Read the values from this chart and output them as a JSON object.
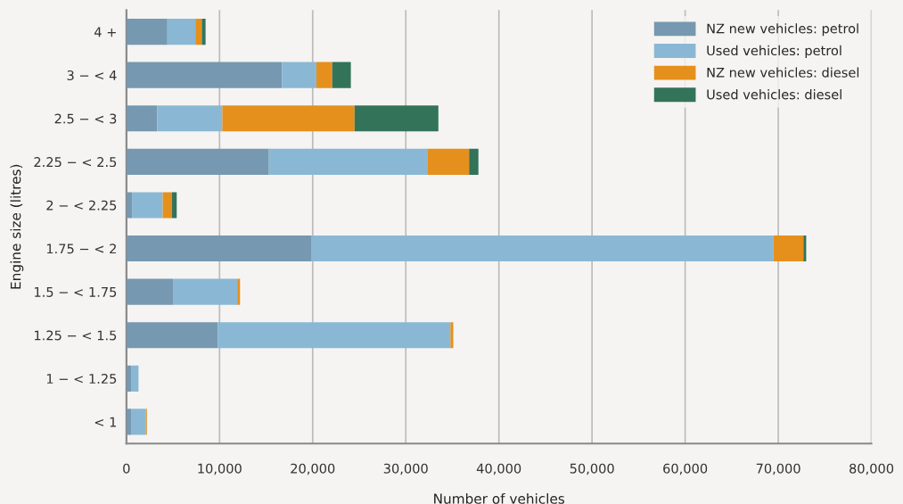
{
  "chart_data": {
    "type": "bar",
    "orientation": "horizontal",
    "stacked": true,
    "xlabel": "Number of vehicles",
    "ylabel": "Engine size (litres)",
    "categories": [
      "4 +",
      "3 − < 4",
      "2.5 − < 3",
      "2.25 − < 2.5",
      "2 − < 2.25",
      "1.75 − < 2",
      "1.5 − < 1.75",
      "1.25 − < 1.5",
      "1 − < 1.25",
      "< 1"
    ],
    "series": [
      {
        "name": "NZ new vehicles: petrol",
        "color": "#7698b0",
        "values": [
          4400,
          16700,
          3300,
          15300,
          600,
          19900,
          5000,
          9800,
          500,
          500
        ]
      },
      {
        "name": "Used vehicles: petrol",
        "color": "#8ab8d4",
        "values": [
          3000,
          3700,
          7000,
          17000,
          3300,
          49600,
          6900,
          25000,
          800,
          1600
        ]
      },
      {
        "name": "NZ new vehicles: diesel",
        "color": "#e5901c",
        "values": [
          700,
          1700,
          14200,
          4500,
          1000,
          3200,
          300,
          300,
          0,
          100
        ]
      },
      {
        "name": "Used vehicles: diesel",
        "color": "#33735a",
        "values": [
          400,
          2000,
          9000,
          1000,
          500,
          300,
          0,
          0,
          0,
          0
        ]
      }
    ],
    "xlim": [
      0,
      80000
    ],
    "xticks": [
      0,
      {
        "value": 10000,
        "label": "10,000"
      },
      {
        "value": 20000,
        "label": "20,000"
      },
      {
        "value": 30000,
        "label": "30,000"
      },
      {
        "value": 40000,
        "label": "40,000"
      },
      {
        "value": 50000,
        "label": "50,000"
      },
      {
        "value": 60000,
        "label": "60,000"
      },
      {
        "value": 70000,
        "label": "70,000"
      },
      {
        "value": 80000,
        "label": "80,000"
      }
    ],
    "grid": "x",
    "legend": "top right"
  }
}
